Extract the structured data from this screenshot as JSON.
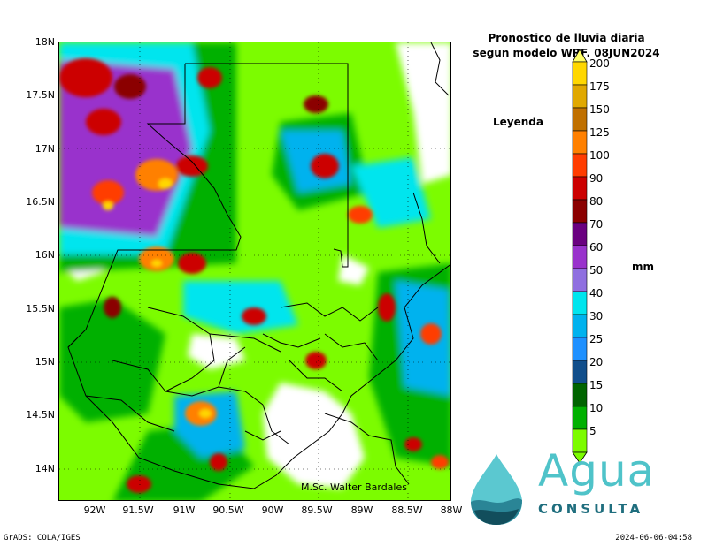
{
  "title": {
    "line1": "Pronostico de lluvia diaria",
    "line2": "segun modelo WRF.   08JUN2024"
  },
  "legend_label": "Leyenda",
  "unit": "mm",
  "y_ticks": [
    "18N",
    "17.5N",
    "17N",
    "16.5N",
    "16N",
    "15.5N",
    "15N",
    "14.5N",
    "14N"
  ],
  "x_ticks": [
    "92W",
    "91.5W",
    "91W",
    "90.5W",
    "90W",
    "89.5W",
    "89W",
    "88.5W",
    "88W"
  ],
  "colorbar": {
    "labels": [
      "200",
      "175",
      "150",
      "125",
      "100",
      "90",
      "80",
      "70",
      "60",
      "50",
      "40",
      "30",
      "25",
      "20",
      "15",
      "10",
      "5"
    ],
    "colors": [
      "#ffff66",
      "#ffd700",
      "#e0a800",
      "#c07000",
      "#ff8000",
      "#ff3c00",
      "#cc0000",
      "#8b0000",
      "#6a0080",
      "#9932cc",
      "#8f6fe0",
      "#00e5ee",
      "#00b2ee",
      "#1e90ff",
      "#104e8b",
      "#006400",
      "#00b000",
      "#7cfc00"
    ]
  },
  "credit": "M.Sc. Walter Bardales",
  "footer": {
    "left": "GrADS: COLA/IGES",
    "right": "2024-06-06-04:58"
  },
  "logo": {
    "word1": "Agua",
    "word2": "CONSULTA"
  }
}
